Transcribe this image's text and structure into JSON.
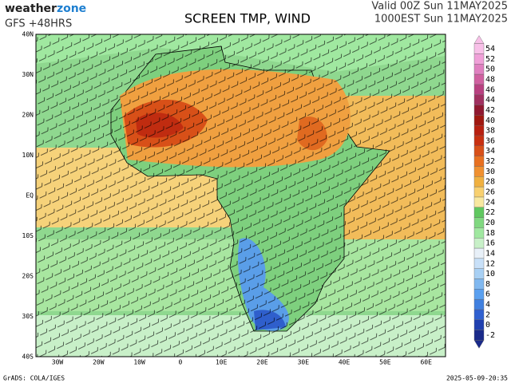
{
  "header": {
    "brand_main": "weather",
    "brand_accent": "zone",
    "model": "GFS +48HRS",
    "title": "SCREEN TMP, WIND",
    "valid_utc": "Valid 00Z Sun 11MAY2025",
    "valid_local": "1000EST Sun 11MAY2025"
  },
  "map": {
    "lat_labels": [
      "40N",
      "30N",
      "20N",
      "10N",
      "EQ",
      "10S",
      "20S",
      "30S",
      "40S"
    ],
    "lon_labels": [
      "30W",
      "20W",
      "10W",
      "0",
      "10E",
      "20E",
      "30E",
      "40E",
      "50E",
      "60E"
    ]
  },
  "colorbar": {
    "labels": [
      -2,
      0,
      2,
      4,
      6,
      8,
      10,
      12,
      14,
      16,
      18,
      20,
      22,
      24,
      26,
      28,
      30,
      32,
      34,
      36,
      38,
      40,
      42,
      44,
      46,
      48,
      50,
      52,
      54
    ],
    "colors": [
      "#1a2a8a",
      "#2040b0",
      "#3060d0",
      "#4080e0",
      "#5aa0f0",
      "#80b8f0",
      "#a8d0f4",
      "#c8e0f8",
      "#e8f0f8",
      "#c8f0c8",
      "#a0e8a0",
      "#80d880",
      "#60c860",
      "#f8e8a0",
      "#f8d070",
      "#f0b040",
      "#f09030",
      "#e87020",
      "#d85018",
      "#c83010",
      "#b82010",
      "#a01810",
      "#901830",
      "#a03060",
      "#b84080",
      "#d060a0",
      "#e080c0",
      "#f0a0d8",
      "#f8c0e8"
    ]
  },
  "footer": {
    "left": "GrADS: COLA/IGES",
    "right": "2025-05-09-20:35"
  }
}
